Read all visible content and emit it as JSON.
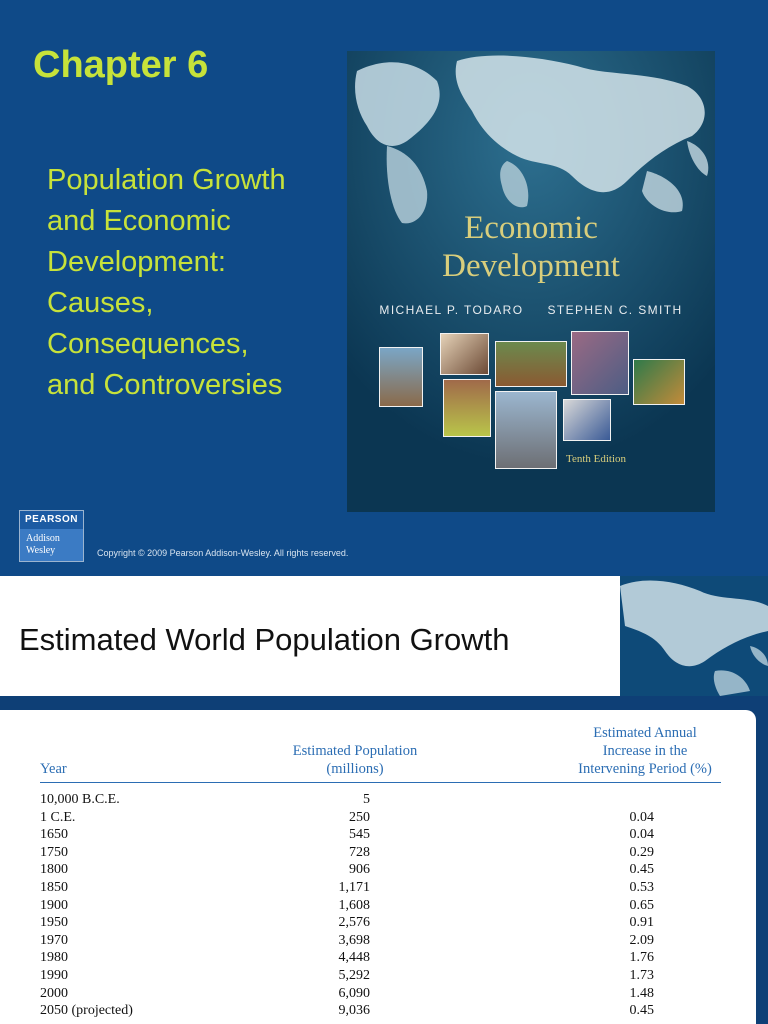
{
  "slide1": {
    "chapter": "Chapter 6",
    "subtitle_lines": [
      "Population Growth",
      "and Economic",
      "Development:",
      "Causes,",
      "Consequences,",
      "and Controversies"
    ],
    "cover": {
      "title_line1": "Economic",
      "title_line2": "Development",
      "author1": "MICHAEL P. TODARO",
      "author2": "STEPHEN C. SMITH",
      "edition": "Tenth Edition"
    },
    "logo": {
      "top": "PEARSON",
      "line1": "Addison",
      "line2": "Wesley"
    },
    "copyright": "Copyright © 2009 Pearson Addison-Wesley. All rights reserved."
  },
  "slide2": {
    "title": "Estimated World Population Growth",
    "table": {
      "headers": {
        "year": "Year",
        "population_line1": "Estimated Population",
        "population_line2": "(millions)",
        "increase_line1": "Estimated Annual",
        "increase_line2": "Increase in the",
        "increase_line3": "Intervening Period (%)"
      },
      "rows": [
        {
          "year": "10,000 B.C.E.",
          "population": "5",
          "increase": ""
        },
        {
          "year": "1 C.E.",
          "population": "250",
          "increase": "0.04"
        },
        {
          "year": "1650",
          "population": "545",
          "increase": "0.04"
        },
        {
          "year": "1750",
          "population": "728",
          "increase": "0.29"
        },
        {
          "year": "1800",
          "population": "906",
          "increase": "0.45"
        },
        {
          "year": "1850",
          "population": "1,171",
          "increase": "0.53"
        },
        {
          "year": "1900",
          "population": "1,608",
          "increase": "0.65"
        },
        {
          "year": "1950",
          "population": "2,576",
          "increase": "0.91"
        },
        {
          "year": "1970",
          "population": "3,698",
          "increase": "2.09"
        },
        {
          "year": "1980",
          "population": "4,448",
          "increase": "1.76"
        },
        {
          "year": "1990",
          "population": "5,292",
          "increase": "1.73"
        },
        {
          "year": "2000",
          "population": "6,090",
          "increase": "1.48"
        },
        {
          "year": "2050 (projected)",
          "population": "9,036",
          "increase": "0.45"
        }
      ]
    }
  }
}
